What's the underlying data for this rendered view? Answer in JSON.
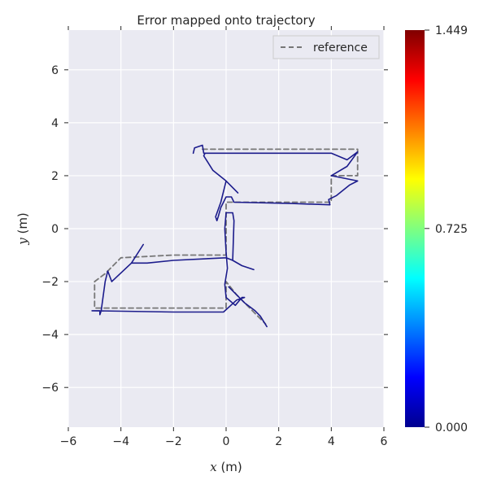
{
  "chart_data": {
    "type": "line",
    "title": "Error mapped onto trajectory",
    "xlabel": "x (m)",
    "ylabel": "y (m)",
    "xlabel_var": "x",
    "xlabel_unit": " (m)",
    "ylabel_var": "y",
    "ylabel_unit": " (m)",
    "xlim": [
      -6,
      6
    ],
    "ylim": [
      -7.5,
      7.5
    ],
    "xticks": [
      -6,
      -4,
      -2,
      0,
      2,
      4,
      6
    ],
    "yticks": [
      -6,
      -4,
      -2,
      0,
      2,
      4,
      6
    ],
    "grid": true,
    "legend": {
      "position": "top-right",
      "entries": [
        "reference"
      ]
    },
    "series": [
      {
        "name": "reference",
        "style": "dashed",
        "color": "#777777",
        "points": [
          [
            -0.9,
            3.0
          ],
          [
            5.0,
            3.0
          ],
          [
            5.0,
            2.0
          ],
          [
            4.0,
            2.0
          ],
          [
            4.0,
            1.0
          ],
          [
            0.0,
            1.0
          ],
          [
            0.0,
            0.0
          ],
          [
            0.0,
            -1.0
          ],
          [
            -2.0,
            -1.0
          ],
          [
            -4.0,
            -1.1
          ],
          [
            -4.6,
            -1.7
          ],
          [
            -5.0,
            -2.0
          ],
          [
            -5.0,
            -3.0
          ],
          [
            0.0,
            -3.0
          ],
          [
            0.0,
            -2.0
          ],
          [
            0.4,
            -2.5
          ],
          [
            1.2,
            -3.3
          ],
          [
            1.5,
            -3.6
          ]
        ]
      },
      {
        "name": "",
        "style": "solid",
        "color": "#1c1c8c",
        "points": [
          [
            -1.25,
            2.85
          ],
          [
            -1.2,
            3.05
          ],
          [
            -0.9,
            3.15
          ],
          [
            -0.85,
            2.85
          ],
          [
            4.0,
            2.85
          ],
          [
            4.6,
            2.6
          ],
          [
            5.0,
            2.9
          ],
          [
            4.6,
            2.35
          ],
          [
            4.0,
            2.0
          ],
          [
            5.0,
            1.8
          ],
          [
            4.7,
            1.65
          ],
          [
            4.2,
            1.25
          ],
          [
            3.9,
            1.1
          ],
          [
            3.95,
            0.9
          ],
          [
            2.5,
            0.95
          ],
          [
            0.3,
            1.0
          ],
          [
            0.2,
            1.2
          ],
          [
            0.0,
            1.2
          ],
          [
            -0.1,
            1.0
          ],
          [
            -0.2,
            0.8
          ],
          [
            -0.3,
            0.45
          ],
          [
            -0.35,
            0.3
          ],
          [
            -0.4,
            0.45
          ],
          [
            -0.2,
            1.0
          ],
          [
            0.0,
            1.8
          ],
          [
            0.45,
            1.35
          ],
          [
            0.0,
            1.8
          ],
          [
            -0.5,
            2.2
          ],
          [
            -0.85,
            2.75
          ],
          [
            -0.8,
            2.85
          ]
        ]
      },
      {
        "name": "",
        "style": "solid",
        "color": "#1c1c8c",
        "points": [
          [
            0.0,
            0.6
          ],
          [
            0.25,
            0.6
          ],
          [
            0.3,
            0.3
          ],
          [
            0.25,
            -1.2
          ],
          [
            0.6,
            -1.4
          ],
          [
            1.05,
            -1.55
          ],
          [
            0.6,
            -1.4
          ],
          [
            0.25,
            -1.2
          ],
          [
            0.0,
            -1.1
          ],
          [
            -2.0,
            -1.2
          ],
          [
            -3.0,
            -1.3
          ],
          [
            -3.6,
            -1.3
          ],
          [
            -3.15,
            -0.6
          ],
          [
            -3.6,
            -1.3
          ],
          [
            -4.35,
            -2.0
          ],
          [
            -4.5,
            -1.6
          ],
          [
            -4.6,
            -2.0
          ],
          [
            -4.75,
            -3.1
          ],
          [
            -4.8,
            -3.25
          ],
          [
            -4.8,
            -3.1
          ],
          [
            -5.1,
            -3.1
          ],
          [
            -2.0,
            -3.15
          ],
          [
            -0.1,
            -3.15
          ],
          [
            0.4,
            -2.7
          ],
          [
            0.7,
            -2.6
          ],
          [
            0.6,
            -2.6
          ],
          [
            0.35,
            -2.9
          ],
          [
            0.0,
            -2.6
          ],
          [
            -0.05,
            -2.1
          ],
          [
            0.0,
            -1.8
          ],
          [
            0.05,
            -1.5
          ],
          [
            0.0,
            -0.9
          ],
          [
            -0.05,
            0.0
          ],
          [
            0.0,
            0.6
          ]
        ]
      },
      {
        "name": "",
        "style": "solid",
        "color": "#1c1c8c",
        "points": [
          [
            0.1,
            -2.2
          ],
          [
            0.7,
            -2.8
          ],
          [
            1.1,
            -3.1
          ],
          [
            1.3,
            -3.3
          ],
          [
            1.55,
            -3.7
          ]
        ]
      }
    ],
    "colorbar": {
      "min": 0.0,
      "max": 1.449,
      "ticks": [
        "0.000",
        "0.725",
        "1.449"
      ],
      "colormap": "jet"
    }
  }
}
